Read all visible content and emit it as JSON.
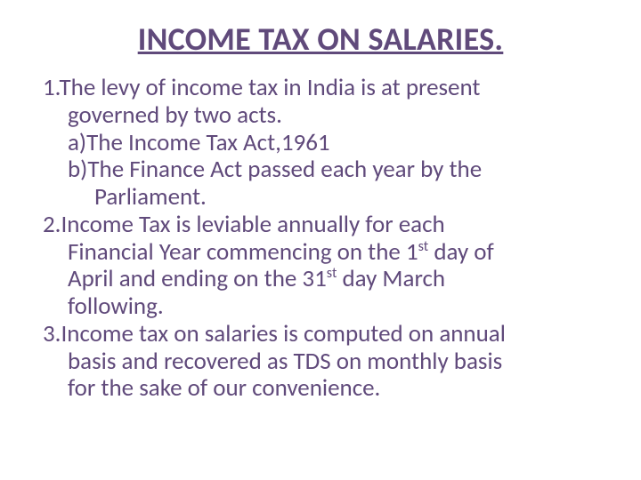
{
  "title": "INCOME TAX ON SALARIES.",
  "colors": {
    "text": "#604a7b",
    "background": "#ffffff"
  },
  "typography": {
    "title_fontsize": 36,
    "title_weight": 700,
    "body_fontsize": 27,
    "font_family": "Calibri"
  },
  "content": {
    "p1_line1": "1.The levy of income tax in India is at present",
    "p1_line2": "governed by two acts.",
    "p1_a": "a)The Income Tax Act,1961",
    "p1_b_line1": "b)The Finance Act passed each year by the",
    "p1_b_line2": "Parliament.",
    "p2_line1": "2.Income Tax is leviable annually for each",
    "p2_line2_pre": "Financial Year commencing on the 1",
    "p2_line2_sup": "st",
    "p2_line2_post": " day of",
    "p2_line3_pre": "April and ending on the 31",
    "p2_line3_sup": "st",
    "p2_line3_post": " day March",
    "p2_line4": "following.",
    "p3_line1": "3.Income tax on salaries is computed on annual",
    "p3_line2": "basis and recovered as TDS on monthly basis",
    "p3_line3": "for the sake of our convenience."
  }
}
